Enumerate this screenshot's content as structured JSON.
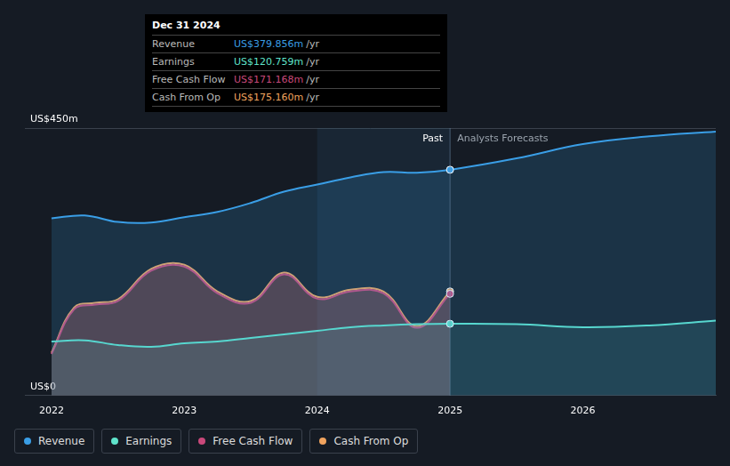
{
  "chart_data": {
    "type": "line",
    "xlim": [
      2021.8,
      2027
    ],
    "xticks": [
      2022,
      2023,
      2024,
      2025,
      2026
    ],
    "ylim": [
      0,
      450
    ],
    "yticks": [
      {
        "value": 0,
        "label": "US$0"
      },
      {
        "value": 450,
        "label": "US$450m"
      }
    ],
    "grid": true,
    "shaded_range": [
      2024,
      2025
    ],
    "forecast_start": 2025,
    "annotations": {
      "past": "Past",
      "forecast": "Analysts Forecasts"
    },
    "tooltip": {
      "title": "Dec 31 2024",
      "unit": "/yr",
      "rows": [
        {
          "label": "Revenue",
          "value": 379.856,
          "value_label": "US$379.856m"
        },
        {
          "label": "Earnings",
          "value": 120.759,
          "value_label": "US$120.759m"
        },
        {
          "label": "Free Cash Flow",
          "value": 171.168,
          "value_label": "US$171.168m"
        },
        {
          "label": "Cash From Op",
          "value": 175.16,
          "value_label": "US$175.160m"
        }
      ]
    },
    "series": [
      {
        "name": "Revenue",
        "color": "#3a9ee6",
        "x": [
          2022,
          2022.25,
          2022.5,
          2022.75,
          2023,
          2023.25,
          2023.5,
          2023.75,
          2024,
          2024.25,
          2024.5,
          2024.75,
          2025,
          2025.5,
          2026,
          2026.5,
          2027
        ],
        "values": [
          298,
          303,
          292,
          291,
          300,
          309,
          324,
          343,
          355,
          367,
          376,
          375,
          379.856,
          399,
          423,
          436,
          444
        ]
      },
      {
        "name": "Earnings",
        "color": "#5fe3cb",
        "x": [
          2022,
          2022.25,
          2022.5,
          2022.75,
          2023,
          2023.25,
          2023.5,
          2023.75,
          2024,
          2024.25,
          2024.5,
          2024.75,
          2025,
          2025.5,
          2026,
          2026.5,
          2027
        ],
        "values": [
          91,
          93,
          85,
          82,
          88,
          91,
          97,
          103,
          109,
          115,
          118,
          120,
          120.759,
          120,
          115,
          118,
          126
        ]
      },
      {
        "name": "Free Cash Flow",
        "color": "#c9487a",
        "x": [
          2022,
          2022.17,
          2022.33,
          2022.5,
          2022.75,
          2023,
          2023.25,
          2023.5,
          2023.75,
          2024,
          2024.25,
          2024.5,
          2024.75,
          2025
        ],
        "values": [
          70,
          145,
          153,
          159,
          210,
          217,
          172,
          156,
          204,
          163,
          175,
          172,
          114,
          171.168
        ]
      },
      {
        "name": "Cash From Op",
        "color": "#f0a35e",
        "x": [
          2022,
          2022.17,
          2022.33,
          2022.5,
          2022.75,
          2023,
          2023.25,
          2023.5,
          2023.75,
          2024,
          2024.25,
          2024.5,
          2024.75,
          2025
        ],
        "values": [
          72,
          148,
          156,
          162,
          213,
          220,
          175,
          159,
          207,
          166,
          178,
          175,
          117,
          175.16
        ]
      }
    ]
  }
}
